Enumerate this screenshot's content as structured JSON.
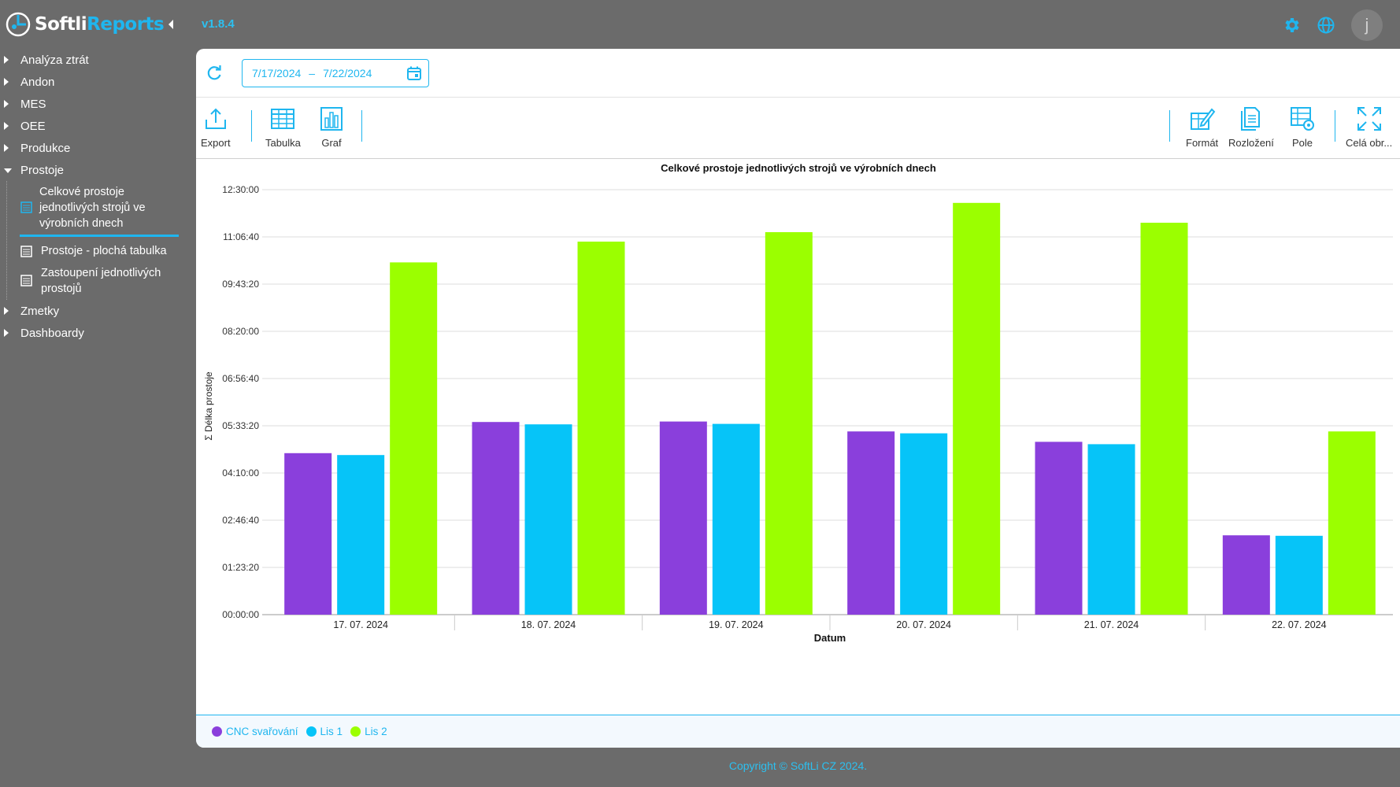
{
  "app": {
    "logo_part1": "Softli",
    "logo_part2": "Reports",
    "version": "v1.8.4",
    "avatar_letter": "j",
    "accent": "#1fb6ef"
  },
  "sidebar": {
    "items": [
      {
        "label": "Analýza ztrát"
      },
      {
        "label": "Andon"
      },
      {
        "label": "MES"
      },
      {
        "label": "OEE"
      },
      {
        "label": "Produkce"
      },
      {
        "label": "Prostoje"
      },
      {
        "label": "Zmetky"
      },
      {
        "label": "Dashboardy"
      }
    ],
    "prostoje_children": [
      {
        "label": "Celkové prostoje jednotlivých strojů ve výrobních dnech"
      },
      {
        "label": "Prostoje - plochá tabulka"
      },
      {
        "label": "Zastoupení jednotlivých prostojů"
      }
    ]
  },
  "datebar": {
    "from": "7/17/2024",
    "separator": "–",
    "to": "7/22/2024"
  },
  "toolbar": {
    "export": "Export",
    "table": "Tabulka",
    "chart": "Graf",
    "format": "Formát",
    "layout": "Rozložení",
    "fields": "Pole",
    "fullscreen": "Celá obr..."
  },
  "chart_data": {
    "type": "bar",
    "title": "Celkové prostoje jednotlivých strojů ve výrobních dnech",
    "xlabel": "Datum",
    "ylabel": "Σ Délka prostoje",
    "y_unit": "seconds",
    "categories": [
      "17. 07. 2024",
      "18. 07. 2024",
      "19. 07. 2024",
      "20. 07. 2024",
      "21. 07. 2024",
      "22. 07. 2024"
    ],
    "yticks": [
      "00:00:00",
      "01:23:20",
      "02:46:40",
      "04:10:00",
      "05:33:20",
      "06:56:40",
      "08:20:00",
      "09:43:20",
      "11:06:40",
      "12:30:00"
    ],
    "ylim": [
      0,
      45000
    ],
    "grid": true,
    "legend_position": "bottom",
    "series": [
      {
        "name": "CNC svařování",
        "color": "#8a3fdc",
        "values": [
          17100,
          20400,
          20450,
          19400,
          18300,
          8400
        ]
      },
      {
        "name": "Lis 1",
        "color": "#06c4f8",
        "values": [
          16900,
          20150,
          20200,
          19200,
          18050,
          8350
        ]
      },
      {
        "name": "Lis 2",
        "color": "#9bff00",
        "values": [
          37300,
          39500,
          40500,
          43600,
          41500,
          19400
        ]
      }
    ]
  },
  "footer": {
    "copyright": "Copyright © SoftLi CZ 2024."
  }
}
